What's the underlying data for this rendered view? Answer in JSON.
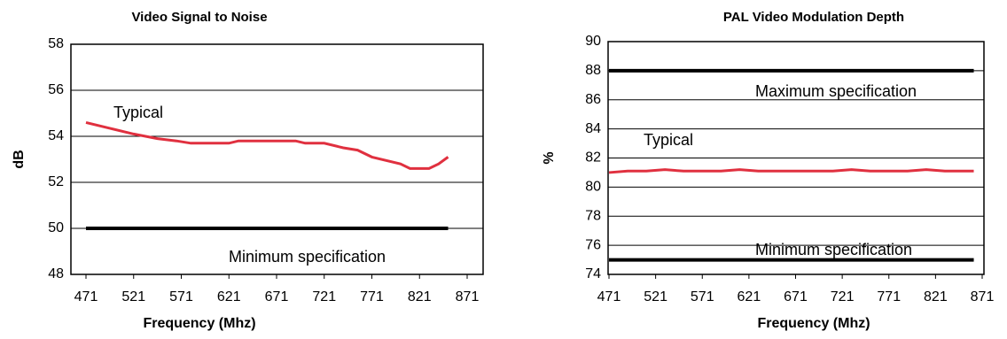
{
  "chart_data": [
    {
      "type": "line",
      "title": "Video Signal to Noise",
      "x_label": "Frequency (Mhz)",
      "y_label": "dB",
      "xlim": [
        471,
        871
      ],
      "xticks": [
        471,
        521,
        571,
        621,
        671,
        721,
        771,
        821,
        871
      ],
      "ylim": [
        48,
        58
      ],
      "yticks": [
        48,
        50,
        52,
        54,
        56,
        58
      ],
      "grid": true,
      "series": [
        {
          "name": "Typical",
          "color": "#e0303f",
          "x": [
            471,
            496,
            521,
            546,
            566,
            581,
            621,
            631,
            691,
            701,
            721,
            741,
            756,
            771,
            801,
            811,
            831,
            841,
            851
          ],
          "values": [
            54.6,
            54.35,
            54.1,
            53.9,
            53.8,
            53.7,
            53.7,
            53.8,
            53.8,
            53.7,
            53.7,
            53.5,
            53.4,
            53.1,
            52.8,
            52.6,
            52.6,
            52.8,
            53.1
          ]
        },
        {
          "name": "Minimum specification",
          "color": "#000000",
          "x": [
            471,
            851
          ],
          "values": [
            50,
            50
          ]
        }
      ]
    },
    {
      "type": "line",
      "title": "PAL Video Modulation Depth",
      "x_label": "Frequency (Mhz)",
      "y_label": "%",
      "xlim": [
        471,
        871
      ],
      "xticks": [
        471,
        521,
        571,
        621,
        671,
        721,
        771,
        821,
        871
      ],
      "ylim": [
        74,
        90
      ],
      "yticks": [
        74,
        76,
        78,
        80,
        82,
        84,
        86,
        88,
        90
      ],
      "grid": true,
      "series": [
        {
          "name": "Typical",
          "color": "#e0303f",
          "x": [
            471,
            491,
            511,
            531,
            551,
            571,
            591,
            611,
            631,
            651,
            671,
            691,
            711,
            731,
            751,
            771,
            791,
            811,
            831,
            851,
            862
          ],
          "values": [
            81.0,
            81.1,
            81.1,
            81.2,
            81.1,
            81.1,
            81.1,
            81.2,
            81.1,
            81.1,
            81.1,
            81.1,
            81.1,
            81.2,
            81.1,
            81.1,
            81.1,
            81.2,
            81.1,
            81.1,
            81.1
          ]
        },
        {
          "name": "Maximum specification",
          "color": "#000000",
          "x": [
            471,
            862
          ],
          "values": [
            88,
            88
          ]
        },
        {
          "name": "Minimum specification",
          "color": "#000000",
          "x": [
            471,
            862
          ],
          "values": [
            75,
            75
          ]
        }
      ]
    }
  ]
}
